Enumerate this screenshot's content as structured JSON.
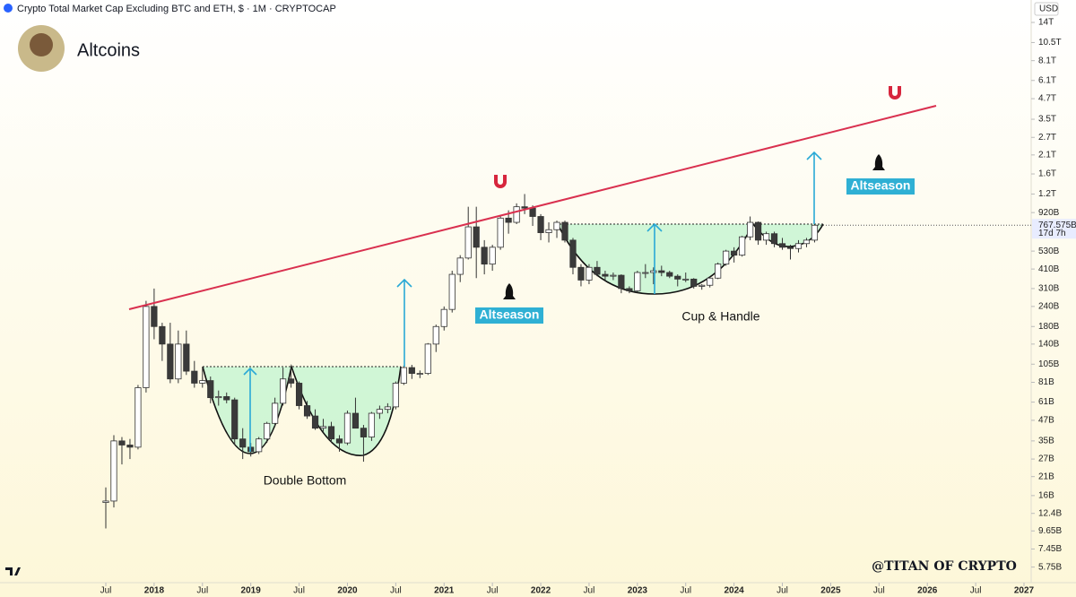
{
  "chart_data": {
    "type": "candlestick",
    "title": "Crypto Total Market Cap Excluding BTC and ETH, $ · 1M · CRYPTOCAP",
    "subtitle": "Altcoins",
    "currency": "USD",
    "log_scale": true,
    "grid": false,
    "up_color": "#ffffff",
    "down_color": "#3a3a3a",
    "wick_color": "#333333",
    "x": [
      "2017-07",
      "2017-08",
      "2017-09",
      "2017-10",
      "2017-11",
      "2017-12",
      "2018-01",
      "2018-02",
      "2018-03",
      "2018-04",
      "2018-05",
      "2018-06",
      "2018-07",
      "2018-08",
      "2018-09",
      "2018-10",
      "2018-11",
      "2018-12",
      "2019-01",
      "2019-02",
      "2019-03",
      "2019-04",
      "2019-05",
      "2019-06",
      "2019-07",
      "2019-08",
      "2019-09",
      "2019-10",
      "2019-11",
      "2019-12",
      "2020-01",
      "2020-02",
      "2020-03",
      "2020-04",
      "2020-05",
      "2020-06",
      "2020-07",
      "2020-08",
      "2020-09",
      "2020-10",
      "2020-11",
      "2020-12",
      "2021-01",
      "2021-02",
      "2021-03",
      "2021-04",
      "2021-05",
      "2021-06",
      "2021-07",
      "2021-08",
      "2021-09",
      "2021-10",
      "2021-11",
      "2021-12",
      "2022-01",
      "2022-02",
      "2022-03",
      "2022-04",
      "2022-05",
      "2022-06",
      "2022-07",
      "2022-08",
      "2022-09",
      "2022-10",
      "2022-11",
      "2022-12",
      "2023-01",
      "2023-02",
      "2023-03",
      "2023-04",
      "2023-05",
      "2023-06",
      "2023-07",
      "2023-08",
      "2023-09",
      "2023-10",
      "2023-11",
      "2023-12",
      "2024-01",
      "2024-02",
      "2024-03",
      "2024-04",
      "2024-05",
      "2024-06",
      "2024-07",
      "2024-08",
      "2024-09",
      "2024-10",
      "2024-11"
    ],
    "open": [
      14.5,
      14.8,
      35,
      33,
      32,
      75,
      240,
      180,
      140,
      85,
      140,
      95,
      80,
      83,
      65,
      66,
      63,
      36,
      32,
      30,
      36,
      45,
      60,
      85,
      80,
      58,
      50,
      42,
      43,
      36,
      34,
      52,
      42,
      37,
      52,
      55,
      57,
      80,
      100,
      92,
      92,
      140,
      180,
      230,
      380,
      480,
      750,
      560,
      440,
      560,
      850,
      800,
      1000,
      980,
      870,
      690,
      720,
      800,
      620,
      420,
      350,
      420,
      380,
      370,
      375,
      310,
      300,
      390,
      390,
      400,
      390,
      370,
      355,
      355,
      320,
      325,
      360,
      440,
      530,
      500,
      650,
      800,
      620,
      680,
      590,
      560,
      550,
      590,
      620
    ],
    "high": [
      18,
      38,
      37,
      36,
      78,
      260,
      310,
      190,
      190,
      170,
      170,
      110,
      100,
      88,
      72,
      70,
      65,
      42,
      34,
      37,
      46,
      65,
      100,
      100,
      82,
      62,
      55,
      48,
      46,
      38,
      54,
      65,
      44,
      53,
      58,
      60,
      82,
      103,
      104,
      96,
      142,
      185,
      240,
      400,
      500,
      1000,
      1000,
      620,
      580,
      880,
      950,
      1050,
      1200,
      1020,
      900,
      800,
      820,
      820,
      640,
      440,
      440,
      460,
      400,
      390,
      380,
      320,
      400,
      440,
      420,
      430,
      400,
      380,
      390,
      360,
      330,
      370,
      450,
      540,
      560,
      660,
      870,
      810,
      700,
      700,
      640,
      580,
      620,
      640,
      780
    ],
    "low": [
      10,
      13.5,
      25,
      27,
      31,
      70,
      150,
      110,
      80,
      80,
      90,
      75,
      75,
      60,
      58,
      60,
      33,
      27,
      28,
      29,
      34,
      43,
      58,
      75,
      55,
      48,
      41,
      40,
      34,
      30,
      33,
      42,
      26,
      35,
      48,
      52,
      55,
      78,
      85,
      86,
      90,
      125,
      170,
      220,
      340,
      470,
      360,
      380,
      400,
      540,
      680,
      780,
      900,
      760,
      620,
      600,
      640,
      600,
      380,
      320,
      330,
      370,
      350,
      350,
      290,
      290,
      295,
      360,
      330,
      370,
      360,
      320,
      340,
      310,
      305,
      315,
      355,
      430,
      450,
      490,
      620,
      580,
      580,
      560,
      540,
      470,
      520,
      560,
      600
    ],
    "close": [
      14.8,
      35,
      33,
      32,
      75,
      240,
      180,
      140,
      85,
      140,
      95,
      80,
      83,
      65,
      66,
      63,
      36,
      32,
      30,
      36,
      45,
      60,
      85,
      80,
      58,
      50,
      42,
      43,
      36,
      34,
      52,
      42,
      37,
      52,
      55,
      57,
      80,
      100,
      92,
      92,
      140,
      180,
      230,
      380,
      480,
      750,
      560,
      440,
      560,
      850,
      800,
      1000,
      980,
      870,
      690,
      720,
      800,
      620,
      420,
      350,
      420,
      380,
      370,
      375,
      310,
      300,
      390,
      390,
      400,
      390,
      370,
      355,
      355,
      320,
      325,
      360,
      440,
      530,
      500,
      650,
      800,
      620,
      680,
      590,
      560,
      550,
      590,
      620,
      767.575
    ],
    "last_price": {
      "value": 767.575,
      "label": "767.575B"
    },
    "countdown": "17d 7h",
    "ylim": [
      4.6,
      19300
    ],
    "yticks": [
      {
        "value": 14000,
        "label": "14T"
      },
      {
        "value": 10500,
        "label": "10.5T"
      },
      {
        "value": 8100,
        "label": "8.1T"
      },
      {
        "value": 6100,
        "label": "6.1T"
      },
      {
        "value": 4700,
        "label": "4.7T"
      },
      {
        "value": 3500,
        "label": "3.5T"
      },
      {
        "value": 2700,
        "label": "2.7T"
      },
      {
        "value": 2100,
        "label": "2.1T"
      },
      {
        "value": 1600,
        "label": "1.6T"
      },
      {
        "value": 1200,
        "label": "1.2T"
      },
      {
        "value": 920,
        "label": "920B"
      },
      {
        "value": 530,
        "label": "530B"
      },
      {
        "value": 410,
        "label": "410B"
      },
      {
        "value": 310,
        "label": "310B"
      },
      {
        "value": 240,
        "label": "240B"
      },
      {
        "value": 180,
        "label": "180B"
      },
      {
        "value": 140,
        "label": "140B"
      },
      {
        "value": 105,
        "label": "105B"
      },
      {
        "value": 81,
        "label": "81B"
      },
      {
        "value": 61,
        "label": "61B"
      },
      {
        "value": 47,
        "label": "47B"
      },
      {
        "value": 35,
        "label": "35B"
      },
      {
        "value": 27,
        "label": "27B"
      },
      {
        "value": 21,
        "label": "21B"
      },
      {
        "value": 16,
        "label": "16B"
      },
      {
        "value": 12.4,
        "label": "12.4B"
      },
      {
        "value": 9.65,
        "label": "9.65B"
      },
      {
        "value": 7.45,
        "label": "7.45B"
      },
      {
        "value": 5.75,
        "label": "5.75B"
      }
    ],
    "xticks": [
      {
        "value": "2017-07",
        "label": "Jul"
      },
      {
        "value": "2018-01",
        "label": "2018"
      },
      {
        "value": "2018-07",
        "label": "Jul"
      },
      {
        "value": "2019-01",
        "label": "2019"
      },
      {
        "value": "2019-07",
        "label": "Jul"
      },
      {
        "value": "2020-01",
        "label": "2020"
      },
      {
        "value": "2020-07",
        "label": "Jul"
      },
      {
        "value": "2021-01",
        "label": "2021"
      },
      {
        "value": "2021-07",
        "label": "Jul"
      },
      {
        "value": "2022-01",
        "label": "2022"
      },
      {
        "value": "2022-07",
        "label": "Jul"
      },
      {
        "value": "2023-01",
        "label": "2023"
      },
      {
        "value": "2023-07",
        "label": "Jul"
      },
      {
        "value": "2024-01",
        "label": "2024"
      },
      {
        "value": "2024-07",
        "label": "Jul"
      },
      {
        "value": "2025-01",
        "label": "2025"
      },
      {
        "value": "2025-07",
        "label": "Jul"
      },
      {
        "value": "2026-01",
        "label": "2026"
      },
      {
        "value": "2026-07",
        "label": "Jul"
      },
      {
        "value": "2027-01",
        "label": "2027"
      }
    ],
    "annotations": [
      "Double Bottom",
      "Cup & Handle",
      "Altseason",
      "Altseason"
    ],
    "watermark": "@TITAN OF CRYPTO"
  }
}
